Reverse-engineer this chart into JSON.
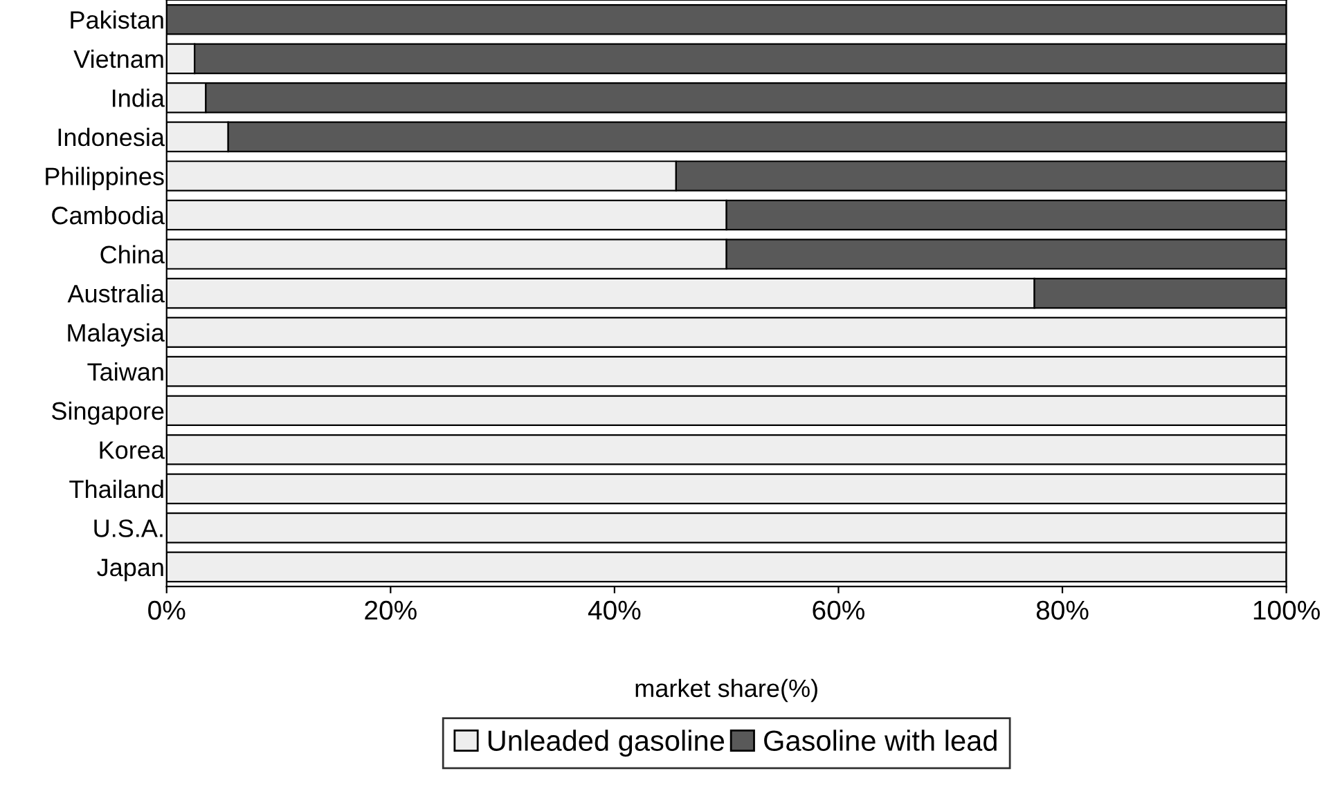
{
  "chart_data": {
    "type": "bar",
    "orientation": "horizontal",
    "stacked": true,
    "xlabel": "market share(%)",
    "categories": [
      "Pakistan",
      "Vietnam",
      "India",
      "Indonesia",
      "Philippines",
      "Cambodia",
      "China",
      "Australia",
      "Malaysia",
      "Taiwan",
      "Singapore",
      "Korea",
      "Thailand",
      "U.S.A.",
      "Japan"
    ],
    "series": [
      {
        "name": "Unleaded gasoline",
        "color": "#eeeeee",
        "values": [
          0,
          2.5,
          3.5,
          5.5,
          45.5,
          50,
          50,
          77.5,
          100,
          100,
          100,
          100,
          100,
          100,
          100
        ]
      },
      {
        "name": "Gasoline with lead",
        "color": "#595959",
        "values": [
          100,
          97.5,
          96.5,
          94.5,
          54.5,
          50,
          50,
          22.5,
          0,
          0,
          0,
          0,
          0,
          0,
          0
        ]
      }
    ],
    "xlim": [
      0,
      100
    ],
    "xticks": [
      {
        "value": 0,
        "label": "0%"
      },
      {
        "value": 20,
        "label": "20%"
      },
      {
        "value": 40,
        "label": "40%"
      },
      {
        "value": 60,
        "label": "60%"
      },
      {
        "value": 80,
        "label": "80%"
      },
      {
        "value": 100,
        "label": "100%"
      }
    ],
    "grid": false,
    "legend": "bottom"
  }
}
